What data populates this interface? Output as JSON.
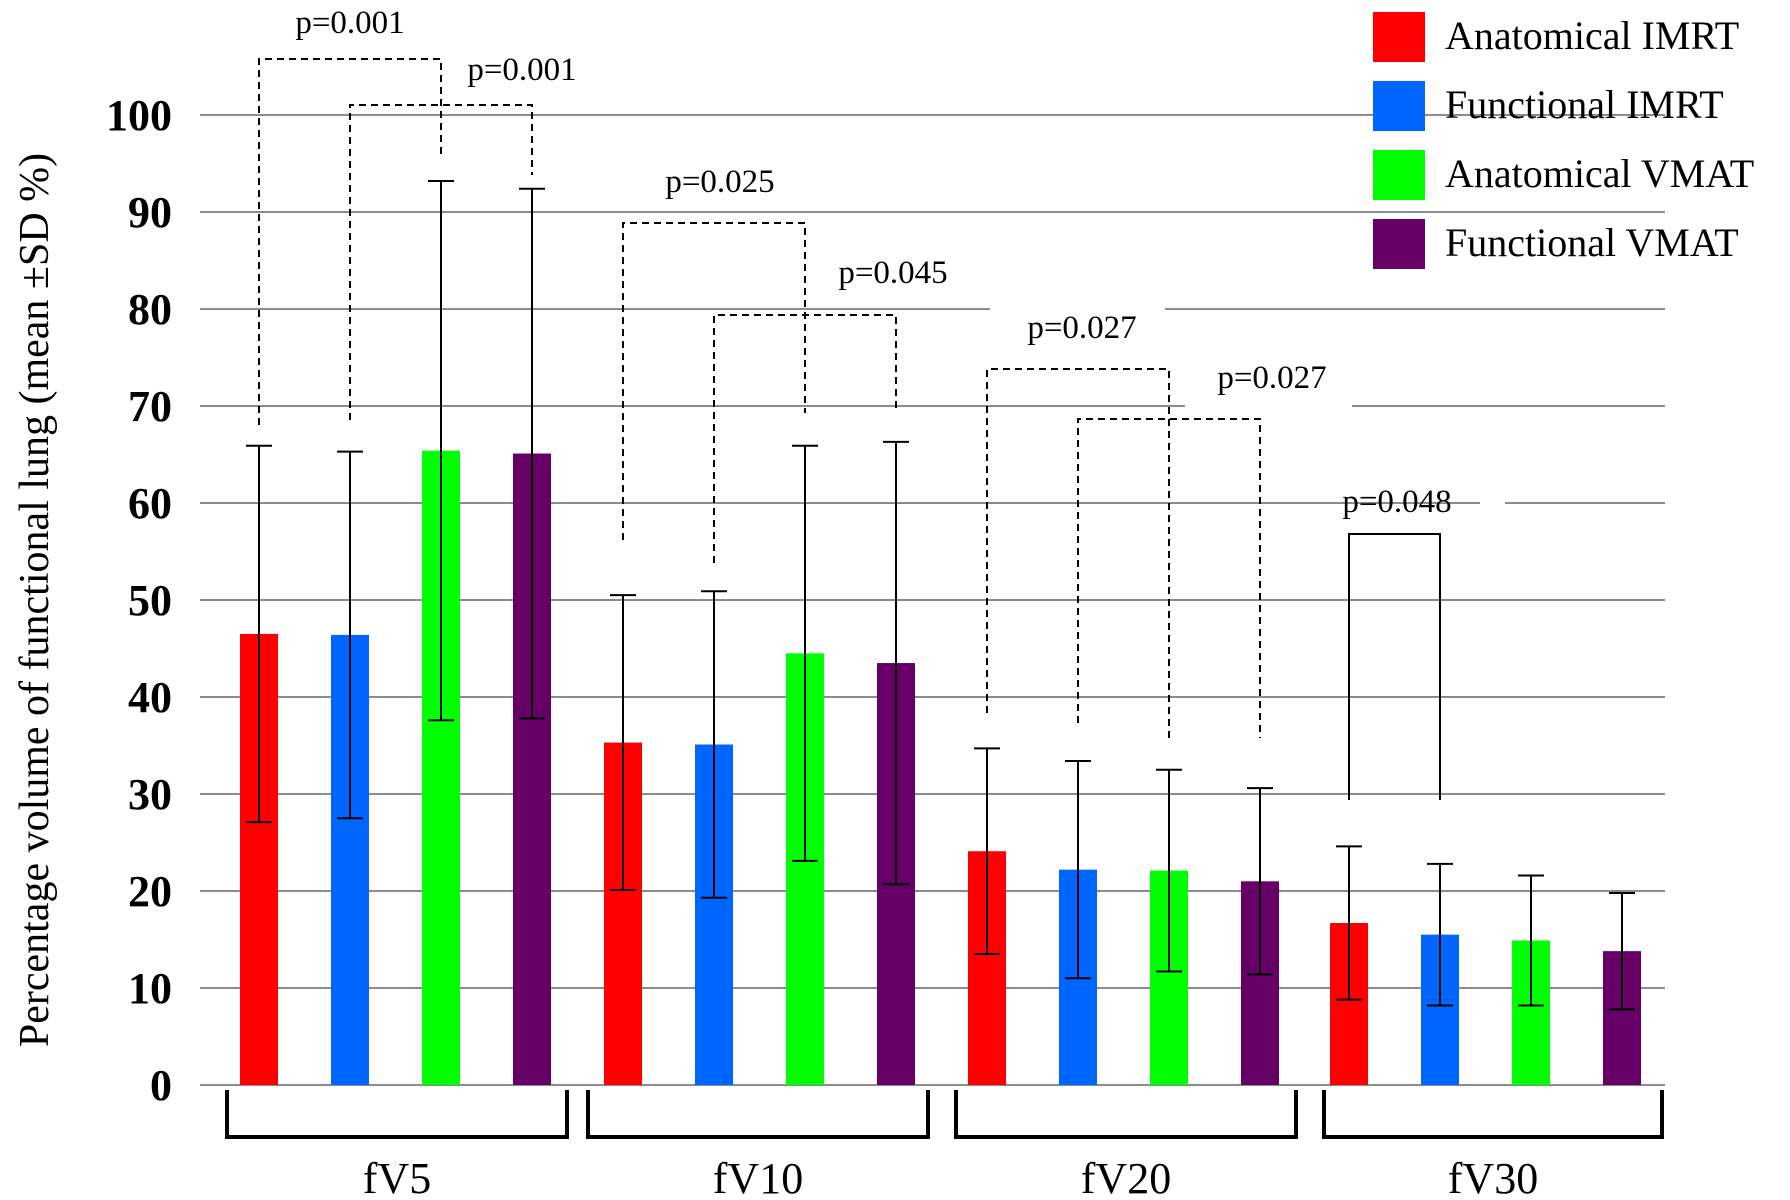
{
  "chart_data": {
    "type": "bar",
    "ylabel": "Percentage volume of functional lung (mean ±SD %)",
    "ylim": [
      0,
      100
    ],
    "yticks": [
      "0",
      "10",
      "20",
      "30",
      "40",
      "50",
      "60",
      "70",
      "80",
      "90",
      "100"
    ],
    "grid": true,
    "legend_position": "top-right",
    "categories": [
      "fV5",
      "fV10",
      "fV20",
      "fV30"
    ],
    "series": [
      {
        "name": "Anatomical IMRT",
        "color": "#ff0000",
        "values": [
          46.5,
          35.3,
          24.1,
          16.7
        ],
        "sd": [
          19.4,
          15.2,
          10.6,
          7.9
        ]
      },
      {
        "name": "Functional IMRT",
        "color": "#0066ff",
        "values": [
          46.4,
          35.1,
          22.2,
          15.5
        ],
        "sd": [
          18.9,
          15.8,
          11.2,
          7.3
        ]
      },
      {
        "name": "Anatomical VMAT",
        "color": "#00ff00",
        "values": [
          65.4,
          44.5,
          22.1,
          14.9
        ],
        "sd": [
          27.8,
          21.4,
          10.4,
          6.7
        ]
      },
      {
        "name": "Functional VMAT",
        "color": "#660066",
        "values": [
          65.1,
          43.5,
          21.0,
          13.8
        ],
        "sd": [
          27.3,
          22.8,
          9.6,
          6.0
        ]
      }
    ],
    "annotations": [
      {
        "text": "p=0.001",
        "category": "fV5",
        "from_series": 0,
        "to_series": 2,
        "style": "dashed"
      },
      {
        "text": "p=0.001",
        "category": "fV5",
        "from_series": 1,
        "to_series": 3,
        "style": "dashed"
      },
      {
        "text": "p=0.025",
        "category": "fV10",
        "from_series": 0,
        "to_series": 2,
        "style": "dashed"
      },
      {
        "text": "p=0.045",
        "category": "fV10",
        "from_series": 1,
        "to_series": 3,
        "style": "dashed"
      },
      {
        "text": "p=0.027",
        "category": "fV20",
        "from_series": 0,
        "to_series": 2,
        "style": "dashed"
      },
      {
        "text": "p=0.027",
        "category": "fV20",
        "from_series": 1,
        "to_series": 3,
        "style": "dashed"
      },
      {
        "text": "p=0.048",
        "category": "fV30",
        "from_series": 0,
        "to_series": 1,
        "style": "solid"
      }
    ]
  }
}
